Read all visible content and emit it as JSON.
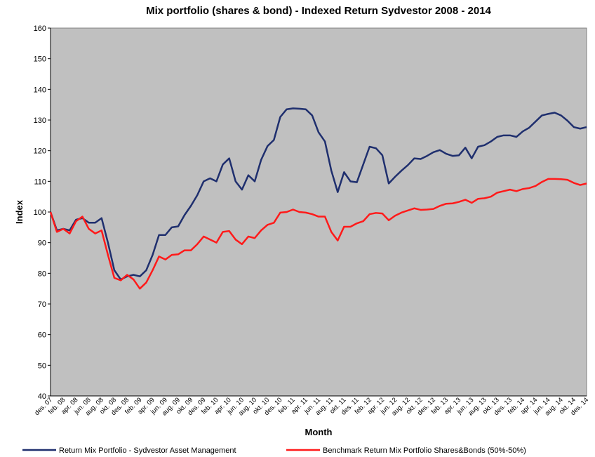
{
  "chart_data": {
    "type": "line",
    "title": "Mix portfolio (shares & bond) - Indexed Return Sydvestor 2008 - 2014",
    "x_label": "Month",
    "y_label": "Index",
    "categories": [
      "des. 07",
      null,
      "feb. 08",
      null,
      "apr. 08",
      null,
      "jun. 08",
      null,
      "aug. 08",
      null,
      "okt. 08",
      null,
      "des. 08",
      null,
      "feb. 09",
      null,
      "apr. 09",
      null,
      "jun. 09",
      null,
      "aug. 09",
      null,
      "okt. 09",
      null,
      "des. 09",
      null,
      "feb. 10",
      null,
      "apr. 10",
      null,
      "jun. 10",
      null,
      "aug. 10",
      null,
      "okt. 10",
      null,
      "des. 10",
      null,
      "feb. 11",
      null,
      "apr. 11",
      null,
      "jun. 11",
      null,
      "aug. 11",
      null,
      "okt. 11",
      null,
      "des. 11",
      null,
      "feb. 12",
      null,
      "apr. 12",
      null,
      "jun. 12",
      null,
      "aug. 12",
      null,
      "okt. 12",
      null,
      "des. 12",
      null,
      "feb. 13",
      null,
      "apr. 13",
      null,
      "jun. 13",
      null,
      "aug. 13",
      null,
      "okt. 13",
      null,
      "des. 13",
      null,
      "feb. 14",
      null,
      "apr. 14",
      null,
      "jun. 14",
      null,
      "aug. 14",
      null,
      "okt. 14",
      null,
      "des. 14"
    ],
    "series": [
      {
        "name": "Return Mix Portfolio - Sydvestor Asset Management",
        "color": "#1f2f6e",
        "values": [
          100,
          94,
          94.5,
          94,
          97.5,
          98,
          96.5,
          96.5,
          98,
          90,
          81,
          78,
          79,
          79.5,
          79,
          81,
          86,
          92.5,
          92.5,
          95,
          95.3,
          99,
          102,
          105.5,
          110,
          111,
          110,
          115.5,
          117.5,
          110,
          107.3,
          112,
          110,
          117,
          121.5,
          123.5,
          131,
          133.5,
          133.8,
          133.7,
          133.5,
          131.5,
          126,
          123,
          113.5,
          106.5,
          113,
          110,
          109.7,
          115.5,
          121.3,
          120.8,
          118.5,
          109.3,
          111.5,
          113.5,
          115.3,
          117.5,
          117.3,
          118.3,
          119.5,
          120.2,
          119,
          118.3,
          118.5,
          121,
          117.5,
          121.3,
          121.8,
          123,
          124.5,
          125,
          125,
          124.5,
          126.3,
          127.5,
          129.5,
          131.5,
          132,
          132.4,
          131.5,
          129.8,
          127.7,
          127.2,
          127.7
        ]
      },
      {
        "name": "Benchmark Return Mix Portfolio Shares&Bonds (50%-50%)",
        "color": "#ff1a1a",
        "values": [
          100,
          93.5,
          94.5,
          93,
          97,
          98.5,
          94.5,
          93,
          94,
          86,
          78.5,
          77.7,
          79.5,
          78,
          75,
          77,
          81,
          85.5,
          84.5,
          86,
          86.2,
          87.5,
          87.5,
          89.5,
          92,
          91,
          90,
          93.5,
          93.8,
          91,
          89.5,
          92,
          91.5,
          94,
          95.8,
          96.5,
          99.8,
          100,
          100.8,
          100,
          99.8,
          99.3,
          98.5,
          98.5,
          93.5,
          90.7,
          95.2,
          95.2,
          96.3,
          97,
          99.3,
          99.7,
          99.5,
          97.3,
          98.8,
          99.8,
          100.5,
          101.2,
          100.7,
          100.8,
          101,
          102,
          102.7,
          102.8,
          103.3,
          104,
          103,
          104.3,
          104.5,
          105,
          106.3,
          106.8,
          107.3,
          106.8,
          107.5,
          107.8,
          108.5,
          109.8,
          110.8,
          110.8,
          110.7,
          110.5,
          109.5,
          108.8,
          109.3
        ]
      }
    ],
    "ylim": [
      40,
      160
    ],
    "yticks": [
      40,
      50,
      60,
      70,
      80,
      90,
      100,
      110,
      120,
      130,
      140,
      150,
      160
    ],
    "grid": false,
    "plot_background": "#c0c0c0"
  }
}
